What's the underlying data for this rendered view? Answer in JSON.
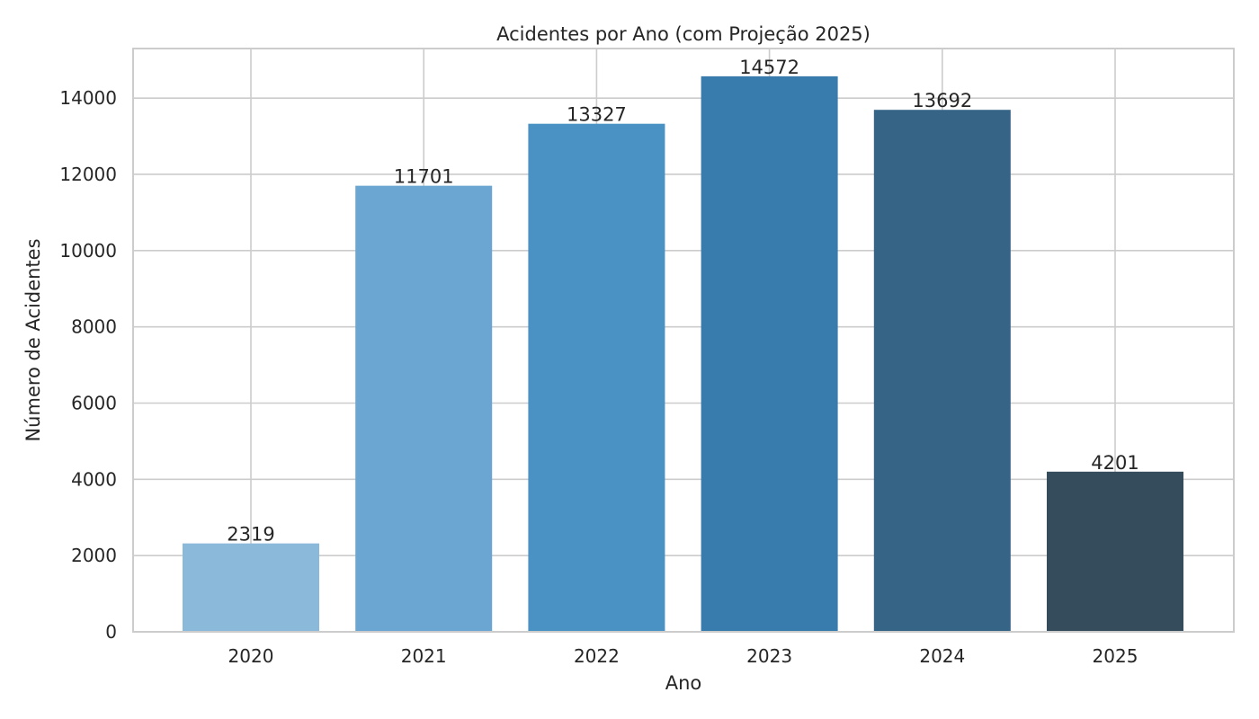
{
  "chart_data": {
    "type": "bar",
    "title": "Acidentes por Ano (com Projeção 2025)",
    "xlabel": "Ano",
    "ylabel": "Número de Acidentes",
    "categories": [
      "2020",
      "2021",
      "2022",
      "2023",
      "2024",
      "2025"
    ],
    "values": [
      2319,
      11701,
      13327,
      14572,
      13692,
      4201
    ],
    "data_labels": [
      "2319",
      "11701",
      "13327",
      "14572",
      "13692",
      "4201"
    ],
    "colors": [
      "#8ab9d9",
      "#6aa6d1",
      "#4a91c4",
      "#387bad",
      "#356486",
      "#354c5c"
    ],
    "ylim": [
      0,
      15300
    ],
    "yticks": [
      0,
      2000,
      4000,
      6000,
      8000,
      10000,
      12000,
      14000
    ],
    "ytick_labels": [
      "0",
      "2000",
      "4000",
      "6000",
      "8000",
      "10000",
      "12000",
      "14000"
    ],
    "grid": true,
    "legend": "none"
  }
}
